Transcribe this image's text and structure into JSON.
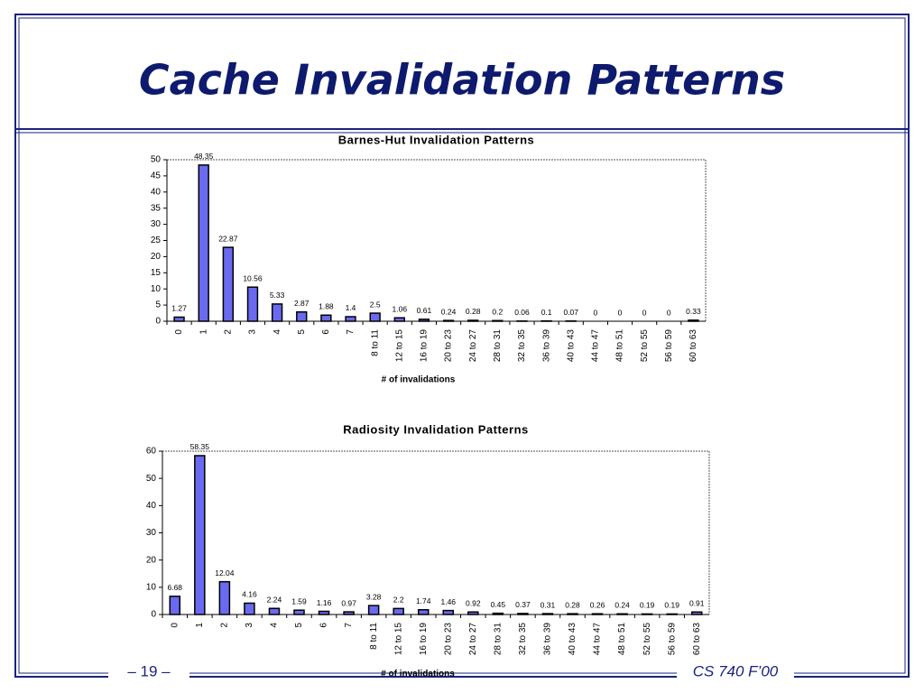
{
  "title": "Cache Invalidation Patterns",
  "footer": {
    "left": "– 19 –",
    "right": "CS 740 F’00"
  },
  "chart_data": [
    {
      "type": "bar",
      "title": "Barnes-Hut Invalidation Patterns",
      "x_label": "# of  invalidations",
      "categories": [
        "0",
        "1",
        "2",
        "3",
        "4",
        "5",
        "6",
        "7",
        "8 to 11",
        "12 to 15",
        "16 to 19",
        "20 to 23",
        "24 to 27",
        "28 to 31",
        "32 to 35",
        "36 to 39",
        "40 to 43",
        "44 to 47",
        "48 to 51",
        "52 to 55",
        "56 to 59",
        "60 to 63"
      ],
      "values": [
        1.27,
        48.35,
        22.87,
        10.56,
        5.33,
        2.87,
        1.88,
        1.4,
        2.5,
        1.06,
        0.61,
        0.24,
        0.28,
        0.2,
        0.06,
        0.1,
        0.07,
        0,
        0,
        0,
        0,
        0.33
      ],
      "color": "#6a6af0",
      "ylim": [
        0,
        50
      ],
      "yticks": [
        0,
        5,
        10,
        15,
        20,
        25,
        30,
        35,
        40,
        45,
        50
      ]
    },
    {
      "type": "bar",
      "title": "Radiosity Invalidation Patterns",
      "x_label": "# of  invalidations",
      "categories": [
        "0",
        "1",
        "2",
        "3",
        "4",
        "5",
        "6",
        "7",
        "8 to 11",
        "12 to 15",
        "16 to 19",
        "20 to 23",
        "24 to 27",
        "28 to 31",
        "32 to 35",
        "36 to 39",
        "40 to 43",
        "44 to 47",
        "48 to 51",
        "52 to 55",
        "56 to 59",
        "60 to 63"
      ],
      "values": [
        6.68,
        58.35,
        12.04,
        4.16,
        2.24,
        1.59,
        1.16,
        0.97,
        3.28,
        2.2,
        1.74,
        1.46,
        0.92,
        0.45,
        0.37,
        0.31,
        0.28,
        0.26,
        0.24,
        0.19,
        0.19,
        0.91
      ],
      "color": "#6a6af0",
      "ylim": [
        0,
        60
      ],
      "yticks": [
        0,
        10,
        20,
        30,
        40,
        50,
        60
      ]
    }
  ]
}
